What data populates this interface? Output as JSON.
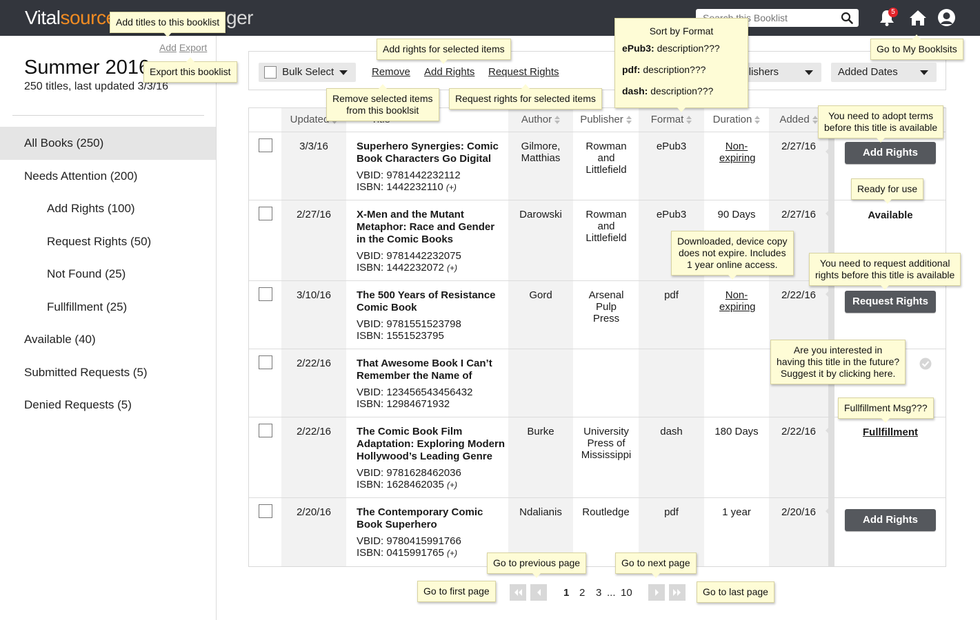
{
  "header": {
    "logo_part1": "Vital",
    "logo_part2": "source",
    "logo_rest": "ger",
    "search_placeholder": "Search this Booklist",
    "notification_count": "5",
    "colors": {
      "bar": "#33363d",
      "accent": "#f08b22",
      "badge": "#e2232a"
    }
  },
  "sidebar": {
    "add_label": "Add",
    "export_label": "Export",
    "booklist_title": "Summer 2016",
    "booklist_subtitle": "250 titles, last updated 3/3/16",
    "nav": [
      {
        "label": "All Books (250)"
      },
      {
        "label": "Needs Attention (200)"
      },
      {
        "label": "Add Rights (100)"
      },
      {
        "label": "Request Rights (50)"
      },
      {
        "label": "Not Found (25)"
      },
      {
        "label": "Fullfillment (25)"
      },
      {
        "label": "Available (40)"
      },
      {
        "label": "Submitted Requests (5)"
      },
      {
        "label": "Denied Requests (5)"
      }
    ]
  },
  "toolbar": {
    "bulk_select": "Bulk Select",
    "remove": "Remove",
    "add_rights": "Add Rights",
    "request_rights": "Request Rights",
    "publishers_filter": "Publishers",
    "added_dates_filter": "Added Dates"
  },
  "table": {
    "headers": {
      "updated": "Updated",
      "title": "Title",
      "author": "Author",
      "publisher": "Publisher",
      "format": "Format",
      "duration": "Duration",
      "added": "Added"
    },
    "vbid_prefix": "VBID: ",
    "isbn_prefix": "ISBN: ",
    "plus": "(+)",
    "rows": [
      {
        "updated": "3/3/16",
        "title": "Superhero Synergies: Comic Book Characters Go Digital",
        "vbid": "9781442232112",
        "isbn": "1442232110",
        "author": "Gilmore, Matthias",
        "publisher": "Rowman and Littlefield",
        "format": "ePub3",
        "duration": "Non-expiring",
        "added": "2/27/16",
        "action": "Add Rights"
      },
      {
        "updated": "2/27/16",
        "title": "X-Men and the Mutant Metaphor: Race and Gender in the Comic Books",
        "vbid": "9781442232075",
        "isbn": "1442232072",
        "author": "Darowski",
        "publisher": "Rowman and Littlefield",
        "format": "ePub3",
        "duration": "90 Days",
        "added": "2/27/16",
        "action": "Available"
      },
      {
        "updated": "3/10/16",
        "title": "The 500 Years of Resistance Comic Book",
        "vbid": "9781551523798",
        "isbn": "1551523795",
        "author": "Gord",
        "publisher": "Arsenal Pulp Press",
        "format": "pdf",
        "duration": "Non-expiring",
        "added": "2/22/16",
        "action": "Request Rights"
      },
      {
        "updated": "2/22/16",
        "title": "That Awesome Book I Can’t Remember the Name of",
        "vbid": "123456543456432",
        "isbn": "12984671932",
        "author": "",
        "publisher": "",
        "format": "",
        "duration": "",
        "added": "",
        "action": ""
      },
      {
        "updated": "2/22/16",
        "title": "The Comic Book Film Adaptation: Exploring Modern Hollywood’s Leading Genre",
        "vbid": "9781628462036",
        "isbn": "1628462035",
        "author": "Burke",
        "publisher": "University Press of Mississippi",
        "format": "dash",
        "duration": "180 Days",
        "added": "2/22/16",
        "action": "Fullfillment"
      },
      {
        "updated": "2/20/16",
        "title": "The Contemporary Comic Book Superhero",
        "vbid": "9780415991766",
        "isbn": "0415991765",
        "author": "Ndalianis",
        "publisher": "Routledge",
        "format": "pdf",
        "duration": "1 year",
        "added": "2/20/16",
        "action": "Add Rights"
      }
    ]
  },
  "pager": {
    "pages": [
      "1",
      "2",
      "3",
      "...",
      "10"
    ]
  },
  "tooltips": {
    "add_titles": "Add titles to this booklist",
    "export": "Export this booklist",
    "add_rights_selected": "Add rights for selected items",
    "remove_selected_1": "Remove selected items",
    "remove_selected_2": "from this booklsit",
    "request_rights_selected": "Request rights for selected items",
    "sort_format_title": "Sort by Format",
    "sort_epub3_key": "ePub3:",
    "sort_epub3_val": " description???",
    "sort_pdf_key": "pdf:",
    "sort_pdf_val": " description???",
    "sort_dash_key": "dash:",
    "sort_dash_val": " description???",
    "go_booklists": "Go to My Booklsits",
    "adopt_terms_1": "You need to adopt terms",
    "adopt_terms_2": "before this title is available",
    "ready": "Ready for use",
    "downloaded_1": "Downloaded, device copy",
    "downloaded_2": "does not expire. Includes",
    "downloaded_3": "1 year online access.",
    "request_additional_1": "You need to request additional",
    "request_additional_2": "rights before this title is available",
    "interested_1": "Are you interested in",
    "interested_2": "having this title in the future?",
    "interested_3": "Suggest it by clicking here.",
    "fulfillment_msg": "Fullfillment Msg???",
    "prev_page": "Go to previous page",
    "next_page": "Go to next page",
    "first_page": "Go to first page",
    "last_page": "Go to last page"
  }
}
